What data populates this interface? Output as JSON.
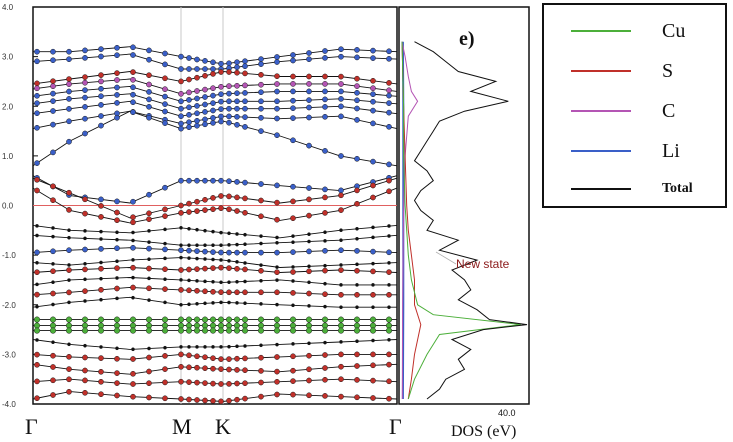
{
  "chart_data": [
    {
      "type": "line",
      "ylim": [
        -4.0,
        4.0
      ],
      "yticks": [
        "4.0",
        "3.0",
        "2.0",
        "1.0",
        "0.0",
        "-1.0",
        "-2.0",
        "-3.0",
        "-4.0"
      ],
      "kpoint_labels": [
        "Γ",
        "M",
        "K",
        "Γ"
      ],
      "fermi_level": 0.0,
      "colors": {
        "Cu": "#4caf3a",
        "S": "#c0302a",
        "C": "#b455b4",
        "Li": "#3a5fc8",
        "Total": "#111111"
      },
      "bands": [
        {
          "values": [
            3.1,
            3.1,
            3.2,
            3.0,
            2.85,
            3.0,
            3.15,
            3.1
          ],
          "dot": "Li"
        },
        {
          "values": [
            2.9,
            2.95,
            3.05,
            2.75,
            2.75,
            2.9,
            3.0,
            2.95
          ],
          "dot": "Li"
        },
        {
          "values": [
            2.45,
            2.55,
            2.7,
            2.5,
            2.7,
            2.6,
            2.6,
            2.45
          ],
          "dot": "S"
        },
        {
          "values": [
            2.35,
            2.45,
            2.55,
            2.25,
            2.4,
            2.45,
            2.45,
            2.3
          ],
          "dot": "C"
        },
        {
          "values": [
            2.2,
            2.3,
            2.4,
            2.1,
            2.25,
            2.3,
            2.3,
            2.2
          ],
          "dot": "Li"
        },
        {
          "values": [
            2.05,
            2.15,
            2.25,
            1.95,
            2.1,
            2.1,
            2.15,
            2.05
          ],
          "dot": "Li"
        },
        {
          "values": [
            1.85,
            1.95,
            2.1,
            1.8,
            1.95,
            1.95,
            2.0,
            1.85
          ],
          "dot": "Li"
        },
        {
          "values": [
            1.55,
            1.7,
            1.9,
            1.65,
            1.8,
            1.75,
            1.8,
            1.55
          ],
          "dot": "Li"
        },
        {
          "values": [
            0.8,
            1.3,
            1.9,
            1.55,
            1.7,
            1.4,
            1.0,
            0.8
          ],
          "dot": "Li"
        },
        {
          "values": [
            0.6,
            0.2,
            0.05,
            0.5,
            0.5,
            0.4,
            0.3,
            0.6
          ],
          "dot": "Li"
        },
        {
          "values": [
            0.55,
            0.25,
            -0.25,
            0.0,
            0.2,
            0.05,
            0.2,
            0.55
          ],
          "dot": "S"
        },
        {
          "values": [
            0.35,
            -0.1,
            -0.35,
            -0.15,
            -0.05,
            -0.3,
            -0.1,
            0.35
          ],
          "dot": "S"
        },
        {
          "values": [
            -0.4,
            -0.5,
            -0.55,
            -0.45,
            -0.55,
            -0.65,
            -0.5,
            -0.4
          ],
          "dot": "Total"
        },
        {
          "values": [
            -0.6,
            -0.65,
            -0.7,
            -0.8,
            -0.8,
            -0.75,
            -0.7,
            -0.6
          ],
          "dot": "Total"
        },
        {
          "values": [
            -0.95,
            -0.9,
            -0.85,
            -0.9,
            -0.95,
            -0.95,
            -0.9,
            -0.95
          ],
          "dot": "Li"
        },
        {
          "values": [
            -1.15,
            -1.2,
            -1.1,
            -1.05,
            -1.1,
            -1.25,
            -1.2,
            -1.15
          ],
          "dot": "Total"
        },
        {
          "values": [
            -1.35,
            -1.3,
            -1.25,
            -1.3,
            -1.25,
            -1.35,
            -1.3,
            -1.35
          ],
          "dot": "S"
        },
        {
          "values": [
            -1.6,
            -1.5,
            -1.45,
            -1.5,
            -1.55,
            -1.5,
            -1.6,
            -1.6
          ],
          "dot": "Total"
        },
        {
          "values": [
            -1.8,
            -1.75,
            -1.65,
            -1.7,
            -1.75,
            -1.75,
            -1.8,
            -1.8
          ],
          "dot": "S"
        },
        {
          "values": [
            -2.05,
            -1.95,
            -1.85,
            -2.0,
            -1.95,
            -2.0,
            -2.05,
            -2.05
          ],
          "dot": "Total"
        },
        {
          "values": [
            -2.3,
            -2.3,
            -2.3,
            -2.3,
            -2.3,
            -2.3,
            -2.3,
            -2.3
          ],
          "dot": "Cu"
        },
        {
          "values": [
            -2.42,
            -2.42,
            -2.42,
            -2.42,
            -2.42,
            -2.42,
            -2.42,
            -2.42
          ],
          "dot": "Cu"
        },
        {
          "values": [
            -2.52,
            -2.52,
            -2.52,
            -2.52,
            -2.52,
            -2.52,
            -2.52,
            -2.52
          ],
          "dot": "Cu"
        },
        {
          "values": [
            -2.7,
            -2.8,
            -2.9,
            -2.85,
            -2.85,
            -2.8,
            -2.75,
            -2.7
          ],
          "dot": "Total"
        },
        {
          "values": [
            -3.0,
            -3.05,
            -3.1,
            -3.0,
            -3.1,
            -3.05,
            -3.0,
            -3.0
          ],
          "dot": "S"
        },
        {
          "values": [
            -3.2,
            -3.3,
            -3.4,
            -3.25,
            -3.3,
            -3.35,
            -3.25,
            -3.2
          ],
          "dot": "S"
        },
        {
          "values": [
            -3.55,
            -3.5,
            -3.6,
            -3.55,
            -3.6,
            -3.55,
            -3.5,
            -3.55
          ],
          "dot": "S"
        },
        {
          "values": [
            -3.9,
            -3.75,
            -3.85,
            -3.9,
            -3.95,
            -3.8,
            -3.85,
            -3.9
          ],
          "dot": "S"
        }
      ]
    },
    {
      "type": "line",
      "xlabel": "DOS (eV)",
      "x_max_label": "40.0",
      "panel_label": "e)",
      "annotation": "New state",
      "series": [
        {
          "name": "Total",
          "energy": [
            3.3,
            3.1,
            2.9,
            2.7,
            2.5,
            2.3,
            2.1,
            1.9,
            1.7,
            1.5,
            1.3,
            1.1,
            0.9,
            0.7,
            0.5,
            0.3,
            0.1,
            -0.1,
            -0.3,
            -0.5,
            -0.7,
            -0.9,
            -1.1,
            -1.3,
            -1.5,
            -1.7,
            -1.9,
            -2.1,
            -2.3,
            -2.4,
            -2.5,
            -2.7,
            -2.9,
            -3.1,
            -3.3,
            -3.5,
            -3.7,
            -3.9
          ],
          "dos": [
            4,
            10,
            14,
            18,
            30,
            22,
            34,
            20,
            12,
            10,
            8,
            6,
            4,
            8,
            10,
            6,
            4,
            6,
            10,
            8,
            18,
            12,
            24,
            16,
            20,
            22,
            18,
            24,
            28,
            40,
            26,
            16,
            22,
            18,
            20,
            14,
            12,
            8
          ]
        },
        {
          "name": "Cu",
          "energy": [
            3.3,
            2.0,
            1.0,
            0.0,
            -1.0,
            -1.5,
            -2.0,
            -2.2,
            -2.4,
            -2.6,
            -2.8,
            -3.0,
            -3.5,
            -3.9
          ],
          "dos": [
            0,
            0.5,
            0.5,
            1,
            2,
            3,
            5,
            10,
            38,
            12,
            10,
            8,
            4,
            2
          ]
        },
        {
          "name": "S",
          "energy": [
            3.3,
            2.0,
            1.0,
            0.0,
            -0.5,
            -1.0,
            -1.5,
            -2.0,
            -2.4,
            -3.0,
            -3.5,
            -3.9
          ],
          "dos": [
            0,
            0.5,
            1,
            1.5,
            2,
            3,
            4,
            4,
            6,
            4,
            3,
            2
          ]
        },
        {
          "name": "C",
          "energy": [
            3.3,
            3.0,
            2.6,
            2.3,
            2.1,
            1.8,
            1.0,
            0.0,
            -2.0,
            -3.9
          ],
          "dos": [
            0,
            1,
            2,
            3,
            5,
            2,
            1,
            0.5,
            0.2,
            0.1
          ]
        },
        {
          "name": "Li",
          "energy": [
            3.3,
            2.0,
            0.0,
            -2.0,
            -3.9
          ],
          "dos": [
            0.3,
            0.4,
            0.4,
            0.4,
            0.3
          ]
        }
      ]
    }
  ],
  "legend": [
    {
      "label": "Cu",
      "color": "#4caf3a"
    },
    {
      "label": "S",
      "color": "#c0302a"
    },
    {
      "label": "C",
      "color": "#b455b4"
    },
    {
      "label": "Li",
      "color": "#3a5fc8"
    },
    {
      "label": "Total",
      "color": "#111111"
    }
  ]
}
